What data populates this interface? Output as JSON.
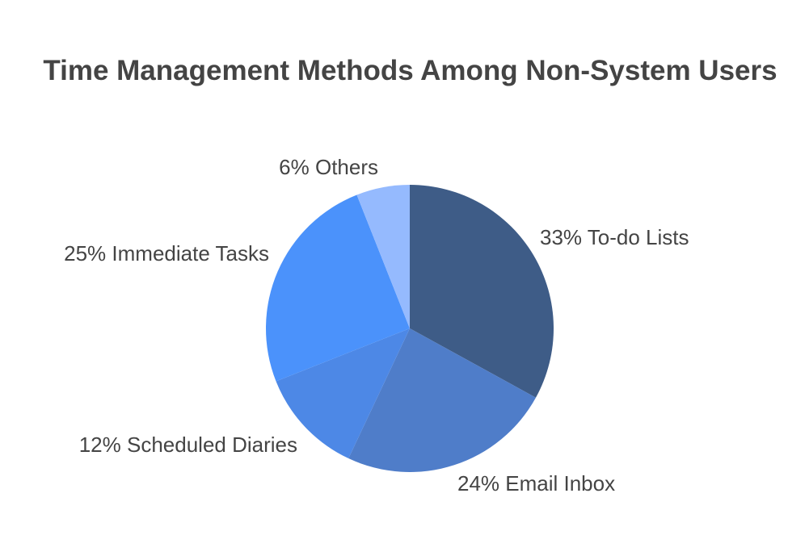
{
  "chart_data": {
    "type": "pie",
    "title": "Time Management Methods Among Non-System Users",
    "start_angle_deg": 0,
    "direction": "clockwise",
    "slices": [
      {
        "label": "To-do Lists",
        "value": 33,
        "display": "33% To-do Lists",
        "color": "#3e5c87"
      },
      {
        "label": "Email Inbox",
        "value": 24,
        "display": "24% Email Inbox",
        "color": "#4f7dc9"
      },
      {
        "label": "Scheduled Diaries",
        "value": 12,
        "display": "12% Scheduled Diaries",
        "color": "#4d88e6"
      },
      {
        "label": "Immediate Tasks",
        "value": 25,
        "display": "25% Immediate Tasks",
        "color": "#4b92fb"
      },
      {
        "label": "Others",
        "value": 6,
        "display": "6% Others",
        "color": "#95bafe"
      }
    ]
  }
}
